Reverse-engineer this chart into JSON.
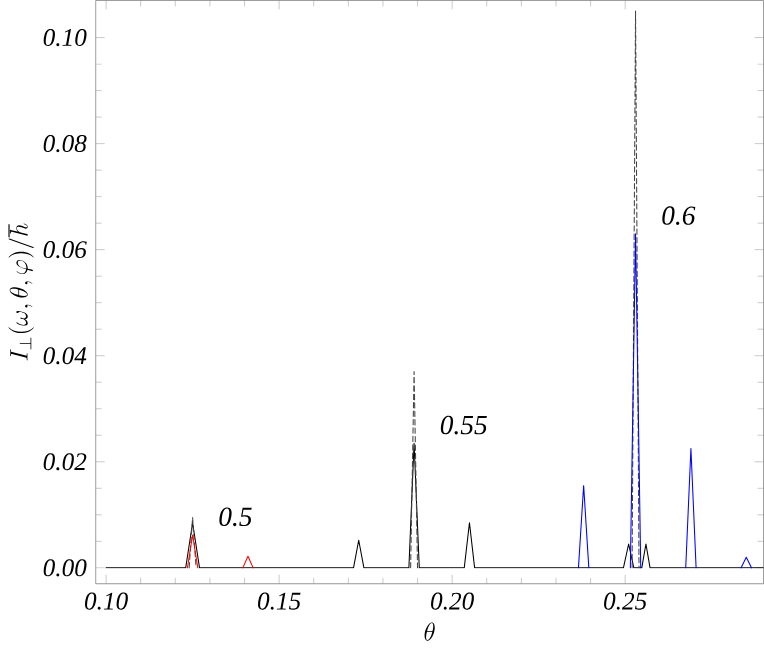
{
  "chart_data": {
    "type": "line",
    "xlabel": "\\theta",
    "ylabel": "I_{\\perp}(\\omega,\\theta,\\varphi)/\\hbar",
    "xlim": [
      0.097,
      0.29
    ],
    "ylim": [
      -0.003,
      0.107
    ],
    "xticks": [
      {
        "value": 0.1,
        "label": "0.10"
      },
      {
        "value": 0.15,
        "label": "0.15"
      },
      {
        "value": 0.2,
        "label": "0.20"
      },
      {
        "value": 0.25,
        "label": "0.25"
      }
    ],
    "yticks": [
      {
        "value": 0,
        "label": "0.00"
      },
      {
        "value": 0.02,
        "label": "0.02"
      },
      {
        "value": 0.04,
        "label": "0.04"
      },
      {
        "value": 0.06,
        "label": "0.06"
      },
      {
        "value": 0.08,
        "label": "0.08"
      },
      {
        "value": 0.1,
        "label": "0.10"
      }
    ],
    "grid": false,
    "marker": "none",
    "series": [
      {
        "color": "#000000",
        "line_style": "solid",
        "x": [
          0.1,
          0.123,
          0.125,
          0.127,
          0.1715,
          0.173,
          0.1745,
          0.1875,
          0.189,
          0.1905,
          0.2035,
          0.205,
          0.2065,
          0.2495,
          0.251,
          0.2525,
          0.2548,
          0.256,
          0.2572,
          0.29
        ],
        "values": [
          0,
          0,
          0.0085,
          0,
          0,
          0.0052,
          0,
          0,
          0.0235,
          0,
          0,
          0.0085,
          0,
          0,
          0.0045,
          0,
          0,
          0.0045,
          0,
          0
        ]
      },
      {
        "color": "#444444",
        "line_style": "dashed",
        "x": [
          0.124,
          0.125,
          0.126,
          0.1265,
          0.188,
          0.189,
          0.19,
          0.1905,
          0.252,
          0.253,
          0.254
        ],
        "values": [
          0,
          0.0095,
          0,
          null,
          0,
          0.037,
          0,
          null,
          0,
          0.105,
          0
        ]
      },
      {
        "color": "#0000ff",
        "line_style": "solid",
        "x": [
          0.2365,
          0.238,
          0.2395,
          0.24,
          0.2515,
          0.253,
          0.2545,
          0.255,
          0.2675,
          0.269,
          0.2705,
          0.275,
          0.2835,
          0.285,
          0.2865
        ],
        "values": [
          0,
          0.0155,
          0,
          null,
          0,
          0.063,
          0,
          null,
          0,
          0.0225,
          0,
          null,
          0,
          0.002,
          0
        ]
      },
      {
        "color": "#ff0000",
        "line_style": "solid",
        "x": [
          0.1235,
          0.125,
          0.1265,
          0.13,
          0.1395,
          0.141,
          0.1425
        ],
        "values": [
          0,
          0.0062,
          0,
          null,
          0,
          0.0022,
          0
        ]
      }
    ],
    "annotations": [
      "0.5",
      "0.55",
      "0.6"
    ]
  }
}
